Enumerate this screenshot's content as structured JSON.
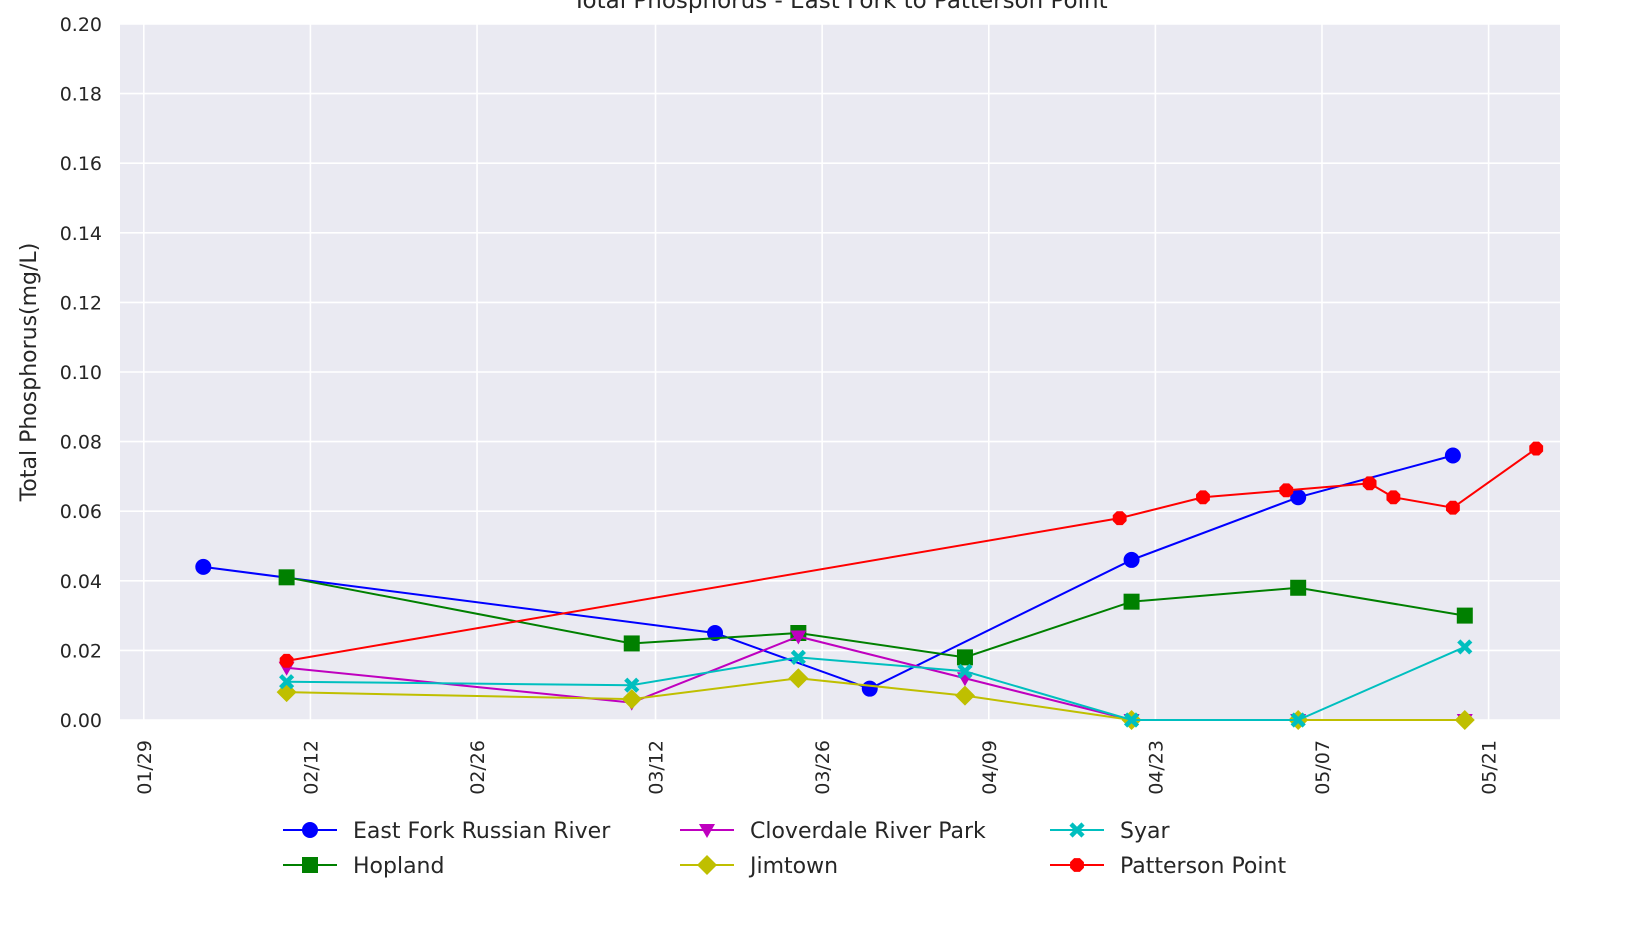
{
  "chart_data": {
    "type": "line",
    "title": "Total Phosphorus - East Fork to Patterson Point",
    "xlabel": "",
    "ylabel": "Total Phosphorus(mg/L)",
    "x_axis_type": "date",
    "year": 2020,
    "xlim": [
      "2020-01-27",
      "2020-05-27"
    ],
    "ylim": [
      0,
      0.2
    ],
    "x_ticks": [
      {
        "date": "2020-01-29",
        "label": "01/29"
      },
      {
        "date": "2020-02-12",
        "label": "02/12"
      },
      {
        "date": "2020-02-26",
        "label": "02/26"
      },
      {
        "date": "2020-03-12",
        "label": "03/12"
      },
      {
        "date": "2020-03-26",
        "label": "03/26"
      },
      {
        "date": "2020-04-09",
        "label": "04/09"
      },
      {
        "date": "2020-04-23",
        "label": "04/23"
      },
      {
        "date": "2020-05-07",
        "label": "05/07"
      },
      {
        "date": "2020-05-21",
        "label": "05/21"
      }
    ],
    "y_ticks": [
      "0.00",
      "0.02",
      "0.04",
      "0.06",
      "0.08",
      "0.10",
      "0.12",
      "0.14",
      "0.16",
      "0.18",
      "0.20"
    ],
    "grid": true,
    "legend_position": "bottom",
    "series": [
      {
        "name": "East Fork Russian River",
        "color": "#0000ff",
        "marker": "circle",
        "x": [
          "2020-02-03",
          "2020-03-17",
          "2020-03-30",
          "2020-04-21",
          "2020-05-05",
          "2020-05-18"
        ],
        "y": [
          0.044,
          0.025,
          0.009,
          0.046,
          0.064,
          0.076
        ]
      },
      {
        "name": "Hopland",
        "color": "#008000",
        "marker": "square",
        "x": [
          "2020-02-10",
          "2020-03-10",
          "2020-03-24",
          "2020-04-07",
          "2020-04-21",
          "2020-05-05",
          "2020-05-19"
        ],
        "y": [
          0.041,
          0.022,
          0.025,
          0.018,
          0.034,
          0.038,
          0.03
        ]
      },
      {
        "name": "Cloverdale River Park",
        "color": "#bf00bf",
        "marker": "triangle-down",
        "x": [
          "2020-02-10",
          "2020-03-10",
          "2020-03-24",
          "2020-04-07",
          "2020-04-21",
          "2020-05-05",
          "2020-05-19"
        ],
        "y": [
          0.015,
          0.005,
          0.024,
          0.012,
          0.0,
          0.0,
          0.0
        ]
      },
      {
        "name": "Jimtown",
        "color": "#bfbf00",
        "marker": "diamond",
        "x": [
          "2020-02-10",
          "2020-03-10",
          "2020-03-24",
          "2020-04-07",
          "2020-04-21",
          "2020-05-05",
          "2020-05-19"
        ],
        "y": [
          0.008,
          0.006,
          0.012,
          0.007,
          0.0,
          0.0,
          0.0
        ]
      },
      {
        "name": "Syar",
        "color": "#00bfbf",
        "marker": "x",
        "x": [
          "2020-02-10",
          "2020-03-10",
          "2020-03-24",
          "2020-04-07",
          "2020-04-21",
          "2020-05-05",
          "2020-05-19"
        ],
        "y": [
          0.011,
          0.01,
          0.018,
          0.014,
          0.0,
          0.0,
          0.021
        ]
      },
      {
        "name": "Patterson Point",
        "color": "#ff0000",
        "marker": "octagon",
        "x": [
          "2020-02-10",
          "2020-04-20",
          "2020-04-27",
          "2020-05-04",
          "2020-05-11",
          "2020-05-13",
          "2020-05-18",
          "2020-05-25"
        ],
        "y": [
          0.017,
          0.058,
          0.064,
          0.066,
          0.068,
          0.064,
          0.061,
          0.078
        ]
      }
    ]
  }
}
